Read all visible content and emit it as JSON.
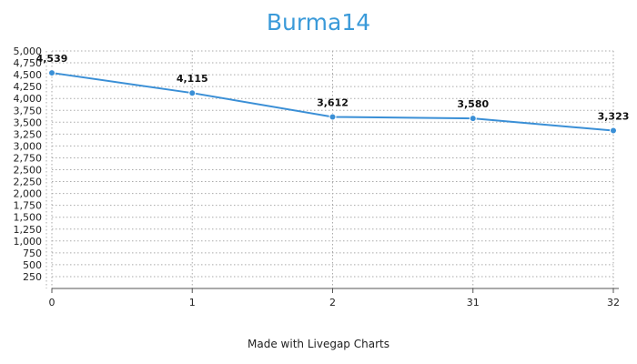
{
  "colors": {
    "title": "#3a9ad9",
    "series": "#3a8fd6",
    "grid": "#aaaaaa",
    "axis": "#555555"
  },
  "footer": {
    "credit": "Made with Livegap Charts"
  },
  "chart_data": {
    "type": "line",
    "title": "Burma14",
    "xlabel": "",
    "ylabel": "",
    "categories": [
      "0",
      "1",
      "2",
      "31",
      "32"
    ],
    "series": [
      {
        "values": [
          4539,
          4115,
          3612,
          3580,
          3323
        ]
      }
    ],
    "data_labels": [
      "4,539",
      "4,115",
      "3,612",
      "3,580",
      "3,323"
    ],
    "y_ticks": [
      "250",
      "500",
      "750",
      "1,000",
      "1,250",
      "1,500",
      "1,750",
      "2,000",
      "2,250",
      "2,500",
      "2,750",
      "3,000",
      "3,250",
      "3,500",
      "3,750",
      "4,000",
      "4,250",
      "4,500",
      "4,750",
      "5,000"
    ],
    "ylim": [
      0,
      5000
    ],
    "grid": true,
    "legend": "none"
  }
}
